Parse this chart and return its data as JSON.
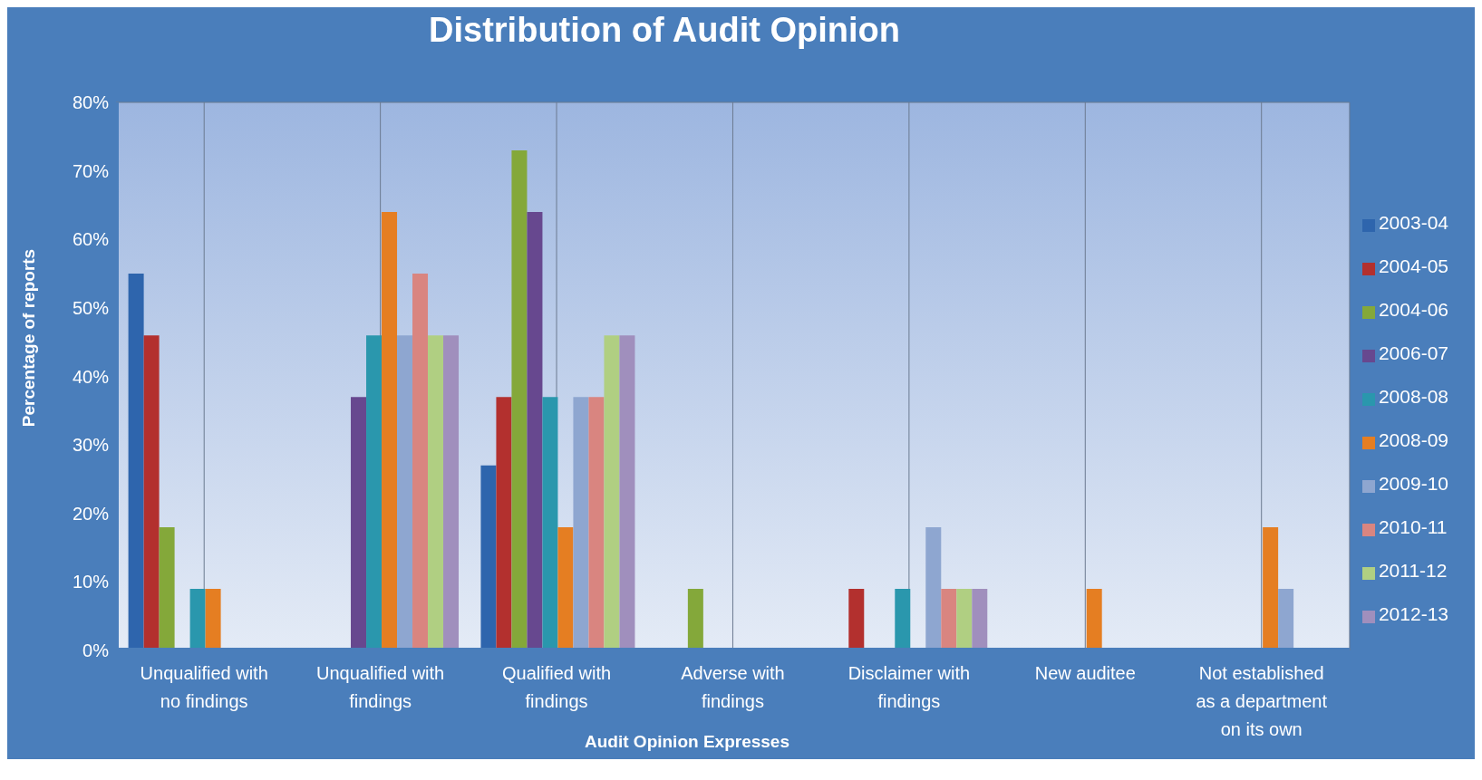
{
  "chart_data": {
    "type": "bar",
    "title": "Distribution of Audit Opinion",
    "xlabel": "Audit Opinion Expresses",
    "ylabel": "Percentage of reports",
    "categories": [
      "Unqualified with no findings",
      "Unqualified with findings",
      "Qualified with findings",
      "Adverse with findings",
      "Disclaimer with findings",
      "New auditee",
      "Not established as a department on its own"
    ],
    "series": [
      {
        "name": "2003-04",
        "color": "#2e65ad",
        "values": [
          55,
          0,
          27,
          0,
          0,
          0,
          0
        ]
      },
      {
        "name": "2004-05",
        "color": "#b3302e",
        "values": [
          46,
          0,
          37,
          0,
          9,
          0,
          0
        ]
      },
      {
        "name": "2004-06",
        "color": "#84a83a",
        "values": [
          18,
          0,
          73,
          9,
          0,
          0,
          0
        ]
      },
      {
        "name": "2006-07",
        "color": "#67488f",
        "values": [
          0,
          37,
          64,
          0,
          0,
          0,
          0
        ]
      },
      {
        "name": "2008-08",
        "color": "#2a97ad",
        "values": [
          9,
          46,
          37,
          0,
          9,
          0,
          0
        ]
      },
      {
        "name": "2008-09",
        "color": "#e57e22",
        "values": [
          9,
          64,
          18,
          0,
          0,
          9,
          18
        ]
      },
      {
        "name": "2009-10",
        "color": "#8ea6d0",
        "values": [
          0,
          46,
          37,
          0,
          18,
          0,
          9
        ]
      },
      {
        "name": "2010-11",
        "color": "#d98580",
        "values": [
          0,
          55,
          37,
          0,
          9,
          0,
          0
        ]
      },
      {
        "name": "2011-12",
        "color": "#b0cf82",
        "values": [
          0,
          46,
          46,
          0,
          9,
          0,
          0
        ]
      },
      {
        "name": "2012-13",
        "color": "#a08fbd",
        "values": [
          0,
          46,
          46,
          0,
          9,
          0,
          0
        ]
      }
    ],
    "ylim": [
      0,
      80
    ],
    "yticks": [
      {
        "value": 0,
        "label": "0%"
      },
      {
        "value": 10,
        "label": "10%"
      },
      {
        "value": 20,
        "label": "20%"
      },
      {
        "value": 30,
        "label": "30%"
      },
      {
        "value": 40,
        "label": "40%"
      },
      {
        "value": 50,
        "label": "50%"
      },
      {
        "value": 60,
        "label": "60%"
      },
      {
        "value": 70,
        "label": "70%"
      },
      {
        "value": 80,
        "label": "80%"
      }
    ],
    "grid": true,
    "legend": "right"
  }
}
